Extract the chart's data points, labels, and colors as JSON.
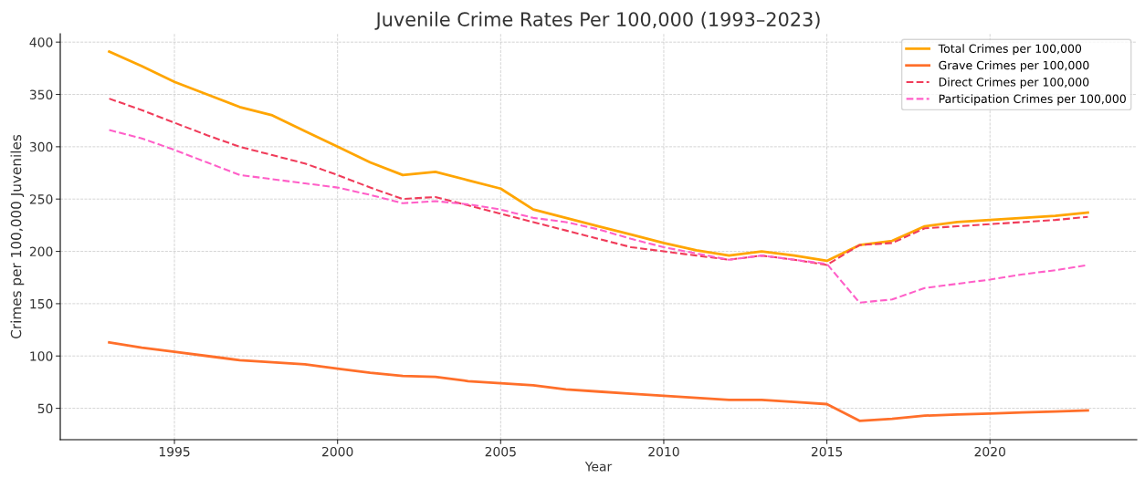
{
  "chart_data": {
    "type": "line",
    "title": "Juvenile Crime Rates Per 100,000 (1993–2023)",
    "xlabel": "Year",
    "ylabel": "Crimes per 100,000 Juveniles",
    "x": [
      1993,
      1994,
      1995,
      1996,
      1997,
      1998,
      1999,
      2000,
      2001,
      2002,
      2003,
      2004,
      2005,
      2006,
      2007,
      2008,
      2009,
      2010,
      2011,
      2012,
      2013,
      2014,
      2015,
      2016,
      2017,
      2018,
      2019,
      2020,
      2021,
      2022,
      2023
    ],
    "series": [
      {
        "name": "Total Crimes per 100,000",
        "color": "#ffa500",
        "line_style": "solid",
        "values": [
          391,
          377,
          362,
          350,
          338,
          330,
          315,
          300,
          285,
          273,
          276,
          268,
          260,
          240,
          232,
          224,
          216,
          208,
          201,
          196,
          200,
          196,
          191,
          206,
          210,
          224,
          228,
          230,
          232,
          234,
          237
        ]
      },
      {
        "name": "Grave Crimes per 100,000",
        "color": "#ff6f2a",
        "line_style": "solid",
        "values": [
          113,
          108,
          104,
          100,
          96,
          94,
          92,
          88,
          84,
          81,
          80,
          76,
          74,
          72,
          68,
          66,
          64,
          62,
          60,
          58,
          58,
          56,
          54,
          38,
          40,
          43,
          44,
          45,
          46,
          47,
          48
        ]
      },
      {
        "name": "Direct Crimes per 100,000",
        "color": "#f03c5a",
        "line_style": "dashed",
        "values": [
          346,
          335,
          323,
          311,
          300,
          292,
          284,
          273,
          261,
          250,
          252,
          244,
          236,
          228,
          220,
          212,
          204,
          200,
          196,
          192,
          196,
          192,
          187,
          206,
          208,
          222,
          224,
          226,
          228,
          230,
          233
        ]
      },
      {
        "name": "Participation Crimes per 100,000",
        "color": "#ff5fc8",
        "line_style": "dashed",
        "values": [
          316,
          308,
          297,
          285,
          273,
          269,
          265,
          261,
          254,
          246,
          248,
          245,
          240,
          232,
          228,
          221,
          212,
          204,
          198,
          192,
          196,
          192,
          188,
          151,
          154,
          165,
          169,
          173,
          178,
          182,
          187
        ]
      }
    ],
    "xlim": [
      1991.5,
      2024.5
    ],
    "xticks": [
      1995,
      2000,
      2005,
      2010,
      2015,
      2020
    ],
    "ylim": [
      20,
      408
    ],
    "yticks": [
      50,
      100,
      150,
      200,
      250,
      300,
      350,
      400
    ],
    "grid": true,
    "legend": "top right",
    "marker": "none"
  }
}
